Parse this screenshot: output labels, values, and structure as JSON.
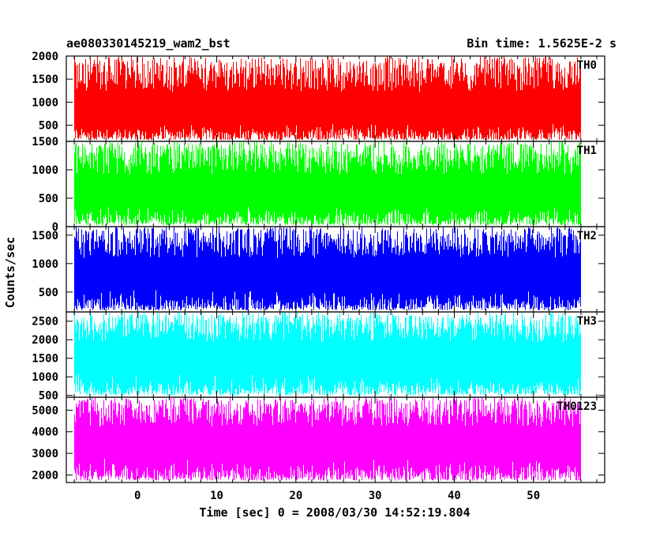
{
  "chart_data": {
    "type": "line",
    "title": "ae080330145219_wam2_bst",
    "bin_time_label": "Bin time: 1.5625E-2 s",
    "xlabel": "Time [sec] 0 = 2008/03/30 14:52:19.804",
    "ylabel": "Counts/sec",
    "xlim": [
      -9,
      59
    ],
    "data_x_range": [
      -8,
      56
    ],
    "bin_time": 0.015625,
    "x_ticks": [
      0,
      10,
      20,
      30,
      40,
      50
    ],
    "grid": false,
    "legend": "none",
    "panels": [
      {
        "name": "TH0",
        "label": "TH0",
        "color": "#ff0000",
        "ylim": [
          150,
          2000
        ],
        "y_ticks": [
          500,
          1000,
          1500,
          2000
        ],
        "baseline": 800,
        "low": 150,
        "high": 2000
      },
      {
        "name": "TH1",
        "label": "TH1",
        "color": "#00ff00",
        "ylim": [
          0,
          1500
        ],
        "y_ticks": [
          0,
          500,
          1000,
          1500
        ],
        "baseline": 600,
        "low": 0,
        "high": 1500
      },
      {
        "name": "TH2",
        "label": "TH2",
        "color": "#0000ff",
        "ylim": [
          150,
          1650
        ],
        "y_ticks": [
          500,
          1000,
          1500
        ],
        "baseline": 800,
        "low": 150,
        "high": 1650
      },
      {
        "name": "TH3",
        "label": "TH3",
        "color": "#00ffff",
        "ylim": [
          450,
          2750
        ],
        "y_ticks": [
          500,
          1000,
          1500,
          2000,
          2500
        ],
        "baseline": 1500,
        "low": 450,
        "high": 2750
      },
      {
        "name": "TH0123",
        "label": "TH0123",
        "color": "#ff00ff",
        "ylim": [
          1650,
          5600
        ],
        "y_ticks": [
          2000,
          3000,
          4000,
          5000
        ],
        "baseline": 3500,
        "low": 1650,
        "high": 5600
      }
    ]
  }
}
